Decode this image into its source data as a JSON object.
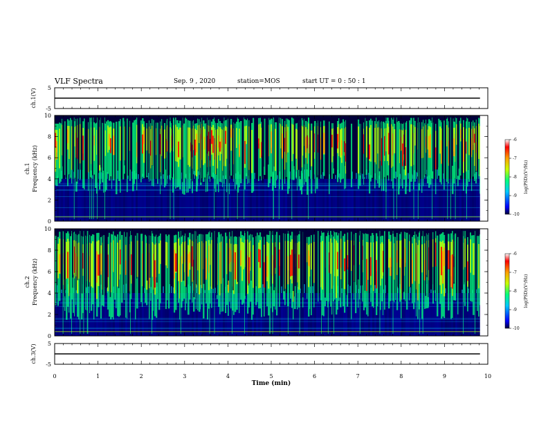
{
  "header": {
    "title": "VLF Spectra",
    "date": "Sep. 9 , 2020",
    "station": "station=MOS",
    "start_ut": "start UT =  0 : 50 : 1"
  },
  "colors": {
    "colormap": [
      "#00003a",
      "#0000ff",
      "#00c8ff",
      "#00ff7f",
      "#c8ff00",
      "#ffa000",
      "#ff0000",
      "#ffffff"
    ],
    "axis": "#000000",
    "background": "#ffffff"
  },
  "chart_data": [
    {
      "type": "line",
      "panel": "ch1-waveform",
      "ylabel": "ch.1(V)",
      "ylim": [
        -5,
        5
      ],
      "yticks": [
        "5",
        "-5"
      ],
      "series": [
        {
          "x": [
            0,
            9.82
          ],
          "y": [
            0,
            0
          ]
        }
      ]
    },
    {
      "type": "heatmap",
      "panel": "ch1-spectrogram",
      "ylabel_channel": "ch.1",
      "ylabel": "Frequency (kHz)",
      "ylim": [
        0,
        10
      ],
      "yticks": [
        "0",
        "2",
        "4",
        "6",
        "8",
        "10"
      ],
      "colorbar": {
        "label": "log(PSD)(V²/Hz)",
        "range": [
          -10,
          -6
        ],
        "ticks": [
          "-6",
          "-7",
          "-8",
          "-9",
          "-10"
        ]
      },
      "band_khz": [
        4.5,
        9.8
      ]
    },
    {
      "type": "heatmap",
      "panel": "ch2-spectrogram",
      "ylabel_channel": "ch.2",
      "ylabel": "Frequency (kHz)",
      "ylim": [
        0,
        10
      ],
      "yticks": [
        "0",
        "2",
        "4",
        "6",
        "8",
        "10"
      ],
      "colorbar": {
        "label": "log(PSD)(V²/Hz)",
        "range": [
          -10,
          -6
        ],
        "ticks": [
          "-6",
          "-7",
          "-8",
          "-9",
          "-10"
        ]
      },
      "band_khz": [
        3.5,
        9.8
      ]
    },
    {
      "type": "line",
      "panel": "ch3-waveform",
      "ylabel": "ch.3(V)",
      "ylim": [
        -5,
        5
      ],
      "yticks": [
        "5",
        "-5"
      ],
      "series": [
        {
          "x": [
            0,
            9.82
          ],
          "y": [
            0,
            0
          ]
        }
      ]
    }
  ],
  "time_axis": {
    "label": "Time (min)",
    "range": [
      0,
      10
    ],
    "ticks": [
      "0",
      "1",
      "2",
      "3",
      "4",
      "5",
      "6",
      "7",
      "8",
      "9",
      "10"
    ],
    "data_end_min": 9.82
  }
}
